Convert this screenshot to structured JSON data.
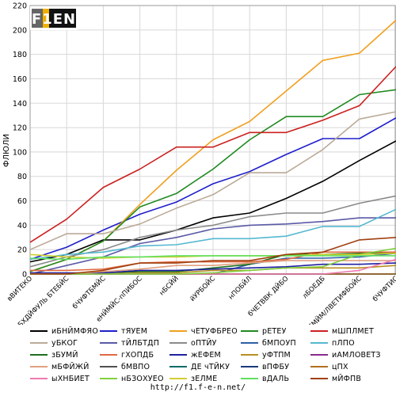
{
  "logo_text": "F1EN",
  "footer_url": "http://f1.f-e-n.net/",
  "chart_data": {
    "type": "line",
    "title": "",
    "xlabel": "",
    "ylabel": "ФЛЮЛИ",
    "ylim": [
      0,
      220
    ],
    "yticks": [
      0,
      20,
      40,
      60,
      80,
      100,
      120,
      140,
      160,
      180,
      200,
      220
    ],
    "grid": true,
    "legend_position": "bottom",
    "categories": [
      "вВИТЕКО",
      "уБХДЙФУЛЬ БТЕБЙС",
      "бЧУФТБМЙС",
      "еНЙМЙС-пПИБОС",
      "нБСЙЙ",
      "йУРБОЙС",
      "нПОБЙЛ",
      "бЧЕТВВК ДЙБО",
      "лБОЕДБ",
      "вЕМЙМ/ЛВЕТИФБОЙС",
      "бЧУФТИС"
    ],
    "series": [
      {
        "name": "иБНЙМФЯО",
        "color": "#000000",
        "values": [
          10,
          16,
          28,
          28,
          36,
          46,
          50,
          62,
          76,
          93,
          109
        ]
      },
      {
        "name": "тЯУЕМ",
        "color": "#1f1fcc",
        "values": [
          12,
          22,
          36,
          49,
          59,
          74,
          84,
          98,
          111,
          111,
          128
        ]
      },
      {
        "name": "чЕТУФБРЕО",
        "color": "#f0a020",
        "values": [
          2,
          12,
          27,
          57,
          85,
          110,
          125,
          150,
          175,
          181,
          208
        ]
      },
      {
        "name": "рЕТЕУ",
        "color": "#208a20",
        "values": [
          2,
          12,
          27,
          55,
          66,
          86,
          110,
          129,
          129,
          147,
          151
        ]
      },
      {
        "name": "мШПЛМЕТ",
        "color": "#cc2020",
        "values": [
          26,
          45,
          71,
          86,
          104,
          104,
          116,
          116,
          126,
          138,
          170
        ]
      },
      {
        "name": "уБКОГ",
        "color": "#bbaa98",
        "values": [
          20,
          33,
          33,
          41,
          54,
          65,
          83,
          83,
          102,
          127,
          133
        ]
      },
      {
        "name": "тЙЛБТДП",
        "color": "#5a5aa8",
        "values": [
          0,
          7,
          14,
          25,
          30,
          37,
          40,
          41,
          43,
          46,
          46
        ]
      },
      {
        "name": "оПТЙУ",
        "color": "#8a8a8a",
        "values": [
          6,
          14,
          20,
          30,
          36,
          40,
          47,
          50,
          50,
          58,
          64
        ]
      },
      {
        "name": "бМПОУП",
        "color": "#2e5fa8",
        "values": [
          0,
          0,
          0,
          0,
          0,
          0,
          8,
          13,
          13,
          14,
          17
        ]
      },
      {
        "name": "пЛПО",
        "color": "#55b8d0",
        "values": [
          12,
          16,
          18,
          23,
          24,
          29,
          29,
          31,
          39,
          39,
          53
        ]
      },
      {
        "name": "зБУМЙ",
        "color": "#1e6e1e",
        "values": [
          0,
          0,
          1,
          2,
          2,
          5,
          8,
          16,
          16,
          17,
          17
        ]
      },
      {
        "name": "гХОПДБ",
        "color": "#e06840",
        "values": [
          3,
          3,
          4,
          9,
          10,
          10,
          10,
          12,
          18,
          18,
          18
        ]
      },
      {
        "name": "жЕФЕМ",
        "color": "#2020a0",
        "values": [
          1,
          1,
          1,
          3,
          3,
          4,
          5,
          6,
          8,
          8,
          9
        ]
      },
      {
        "name": "уФТПМ",
        "color": "#b89020",
        "values": [
          0,
          0,
          0,
          1,
          1,
          3,
          3,
          5,
          5,
          5,
          7
        ]
      },
      {
        "name": "иАМЛОВЕТЗ",
        "color": "#8a2a8a",
        "values": [
          0,
          0,
          0,
          0,
          0,
          0,
          0,
          0,
          0,
          0,
          0
        ]
      },
      {
        "name": "мБФЙЖЙ",
        "color": "#e0a080",
        "values": [
          0,
          0,
          2,
          4,
          7,
          7,
          9,
          11,
          11,
          11,
          11
        ]
      },
      {
        "name": "бМВПО",
        "color": "#505050",
        "values": [
          0,
          0,
          0,
          0,
          0,
          0,
          0,
          0,
          0,
          0,
          0
        ]
      },
      {
        "name": "ДЕ чТЙКУ",
        "color": "#0a6a6a",
        "values": [
          0,
          0,
          0,
          0,
          0,
          0,
          0,
          0,
          0,
          0,
          0
        ]
      },
      {
        "name": "вПФБУ",
        "color": "#1a3a78",
        "values": [
          0,
          0,
          0,
          0,
          0,
          0,
          0,
          0,
          0,
          0,
          0
        ]
      },
      {
        "name": "цПХ",
        "color": "#b07020",
        "values": [
          0,
          0,
          0,
          0,
          0,
          0,
          0,
          0,
          0,
          0,
          0
        ]
      },
      {
        "name": "ыХНБИЕТ",
        "color": "#ee7ab0",
        "values": [
          0,
          0,
          0,
          0,
          0,
          0,
          0,
          0,
          0,
          3,
          12
        ]
      },
      {
        "name": "нБЗОХУЕО",
        "color": "#80d040",
        "values": [
          0,
          0,
          0,
          0,
          0,
          1,
          3,
          5,
          6,
          16,
          21
        ]
      },
      {
        "name": "зЕЛМЕ",
        "color": "#d2cf30",
        "values": [
          16,
          14,
          13,
          14,
          14,
          15,
          15,
          15,
          16,
          16,
          17
        ]
      },
      {
        "name": "вДАЛЬ",
        "color": "#60e060",
        "values": [
          13,
          12,
          14,
          14,
          15,
          15,
          15,
          15,
          15,
          15,
          15
        ]
      },
      {
        "name": "мЙФПВ",
        "color": "#a04010",
        "values": [
          0,
          0,
          3,
          9,
          9,
          11,
          11,
          16,
          18,
          28,
          30
        ]
      }
    ]
  }
}
